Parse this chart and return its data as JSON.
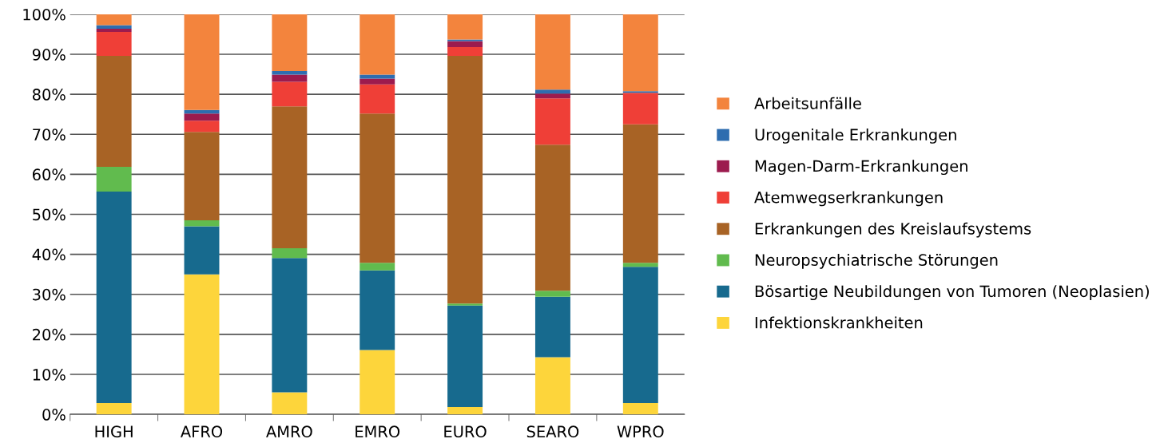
{
  "chart_data": {
    "type": "bar",
    "stacked": true,
    "categories": [
      "HIGH",
      "AFRO",
      "AMRO",
      "EMRO",
      "EURO",
      "SEARO",
      "WPRO"
    ],
    "series": [
      {
        "name": "Infektionskrankheiten",
        "color": "#fdd53b",
        "values": [
          2.8,
          35.0,
          5.5,
          16.1,
          1.8,
          14.3,
          2.8
        ]
      },
      {
        "name": "Bösartige Neubildungen von Tumoren (Neoplasien)",
        "color": "#176a8e",
        "values": [
          52.9,
          12.0,
          33.6,
          19.9,
          25.4,
          15.1,
          34.1
        ]
      },
      {
        "name": "Neuropsychiatrische Störungen",
        "color": "#61bb4e",
        "values": [
          6.2,
          1.5,
          2.4,
          1.9,
          0.5,
          1.5,
          1.0
        ]
      },
      {
        "name": "Erkrankungen des Kreislaufsystems",
        "color": "#a86325",
        "values": [
          27.7,
          22.1,
          35.5,
          37.3,
          61.9,
          36.5,
          34.6
        ]
      },
      {
        "name": "Atemwegserkrankungen",
        "color": "#ef3f37",
        "values": [
          6.0,
          2.8,
          6.1,
          7.3,
          2.2,
          11.6,
          7.9
        ]
      },
      {
        "name": "Magen-Darm-Erkrankungen",
        "color": "#9c1b4e",
        "values": [
          0.8,
          1.8,
          1.8,
          1.4,
          1.5,
          1.2,
          0
        ]
      },
      {
        "name": "Urogenitale Erkrankungen",
        "color": "#2e6daf",
        "values": [
          0.9,
          0.9,
          0.9,
          1.0,
          0.4,
          1.0,
          0.4
        ]
      },
      {
        "name": "Arbeitsunfälle",
        "color": "#f3843d",
        "values": [
          2.7,
          23.9,
          14.2,
          15.1,
          6.3,
          18.8,
          19.2
        ]
      }
    ],
    "ylim": [
      0,
      100
    ],
    "yticks": [
      {
        "value": 0,
        "label": "0%"
      },
      {
        "value": 10,
        "label": "10%"
      },
      {
        "value": 20,
        "label": "20%"
      },
      {
        "value": 30,
        "label": "30%"
      },
      {
        "value": 40,
        "label": "40%"
      },
      {
        "value": 50,
        "label": "50%"
      },
      {
        "value": 60,
        "label": "60%"
      },
      {
        "value": 70,
        "label": "70%"
      },
      {
        "value": 80,
        "label": "80%"
      },
      {
        "value": 90,
        "label": "90%"
      },
      {
        "value": 100,
        "label": "100%"
      }
    ],
    "grid": "y",
    "legend": "right"
  }
}
